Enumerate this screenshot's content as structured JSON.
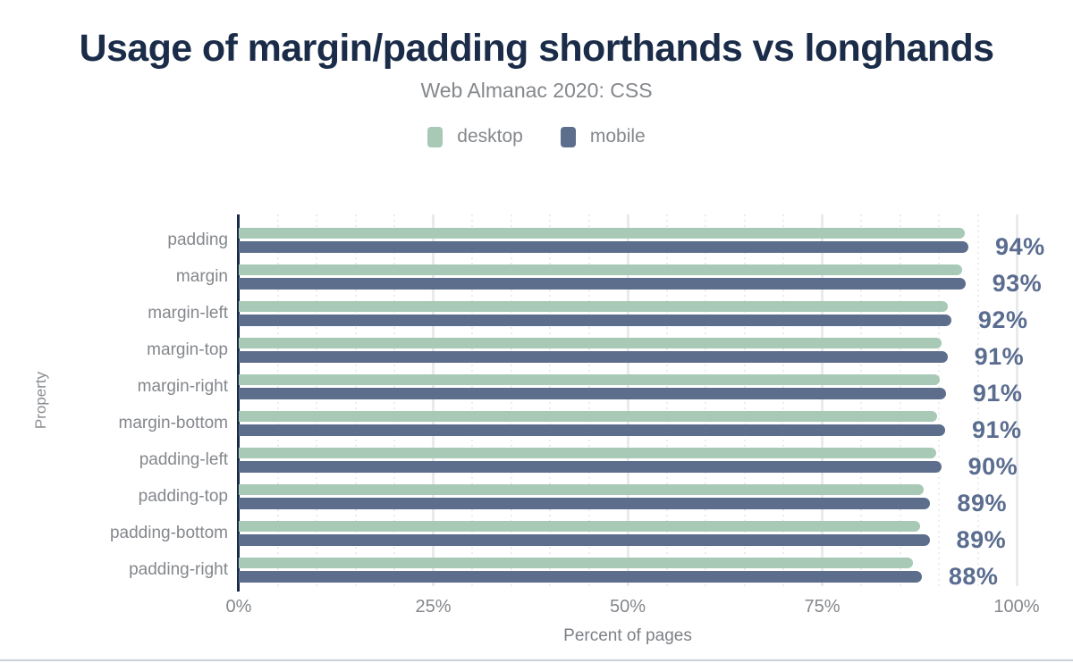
{
  "header": {
    "title": "Usage of margin/padding shorthands vs longhands",
    "subtitle": "Web Almanac 2020: CSS"
  },
  "chart_data": {
    "type": "bar",
    "orientation": "horizontal",
    "title": "Usage of margin/padding shorthands vs longhands",
    "subtitle": "Web Almanac 2020: CSS",
    "categories": [
      "padding",
      "margin",
      "margin-left",
      "margin-top",
      "margin-right",
      "margin-bottom",
      "padding-left",
      "padding-top",
      "padding-bottom",
      "padding-right"
    ],
    "series": [
      {
        "name": "desktop",
        "color": "#a7c9b5",
        "values": [
          93.3,
          93.0,
          91.1,
          90.4,
          90.1,
          89.8,
          89.6,
          88.1,
          87.6,
          86.7
        ]
      },
      {
        "name": "mobile",
        "color": "#5d6e8c",
        "values": [
          93.8,
          93.4,
          91.6,
          91.1,
          90.9,
          90.8,
          90.3,
          88.9,
          88.8,
          87.8
        ]
      }
    ],
    "value_labels": [
      "94%",
      "93%",
      "92%",
      "91%",
      "91%",
      "91%",
      "90%",
      "89%",
      "89%",
      "88%"
    ],
    "xlabel": "Percent of pages",
    "ylabel": "Property",
    "xlim": [
      0,
      100
    ],
    "x_ticks": [
      "0%",
      "25%",
      "50%",
      "75%",
      "100%"
    ],
    "x_tick_values": [
      0,
      25,
      50,
      75,
      100
    ],
    "minor_grid_step": 5,
    "grid": "on",
    "legend_position": "top",
    "colors": {
      "title": "#1b2c49",
      "axis_line": "#1b2c49",
      "muted_text": "#84878c",
      "value_label": "#5a6c8f",
      "grid_major": "#e9eaec",
      "grid_minor": "#ececee"
    }
  }
}
